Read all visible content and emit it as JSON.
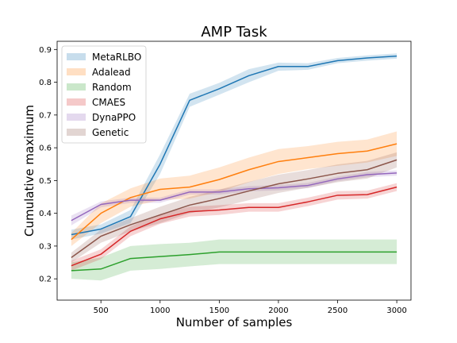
{
  "chart_data": {
    "type": "line",
    "title": "AMP Task",
    "xlabel": "Number of samples",
    "ylabel": "Cumulative maximum",
    "xlim": [
      130,
      3120
    ],
    "ylim": [
      0.135,
      0.925
    ],
    "xticks": [
      500,
      1000,
      1500,
      2000,
      2500,
      3000
    ],
    "yticks": [
      0.2,
      0.3,
      0.4,
      0.5,
      0.6,
      0.7,
      0.8,
      0.9
    ],
    "grid": false,
    "legend_position": "top-left",
    "series": [
      {
        "name": "MetaRLBO",
        "color": "#1f77b4",
        "x": [
          250,
          500,
          750,
          1000,
          1250,
          1500,
          1750,
          2000,
          2250,
          2500,
          2750,
          3000
        ],
        "y": [
          0.335,
          0.352,
          0.39,
          0.55,
          0.745,
          0.78,
          0.82,
          0.848,
          0.848,
          0.866,
          0.874,
          0.88
        ],
        "lower": [
          0.32,
          0.338,
          0.37,
          0.52,
          0.725,
          0.762,
          0.8,
          0.835,
          0.838,
          0.858,
          0.866,
          0.872
        ],
        "upper": [
          0.35,
          0.366,
          0.41,
          0.58,
          0.765,
          0.798,
          0.84,
          0.86,
          0.858,
          0.874,
          0.882,
          0.888
        ]
      },
      {
        "name": "Adalead",
        "color": "#ff7f0e",
        "x": [
          250,
          500,
          750,
          1000,
          1250,
          1500,
          1750,
          2000,
          2250,
          2500,
          2750,
          3000
        ],
        "y": [
          0.32,
          0.4,
          0.448,
          0.473,
          0.48,
          0.503,
          0.533,
          0.558,
          0.57,
          0.582,
          0.59,
          0.612
        ],
        "lower": [
          0.3,
          0.37,
          0.42,
          0.44,
          0.445,
          0.465,
          0.495,
          0.52,
          0.535,
          0.545,
          0.555,
          0.575
        ],
        "upper": [
          0.34,
          0.43,
          0.476,
          0.506,
          0.515,
          0.54,
          0.57,
          0.596,
          0.605,
          0.618,
          0.625,
          0.65
        ]
      },
      {
        "name": "Random",
        "color": "#2ca02c",
        "x": [
          250,
          500,
          750,
          1000,
          1250,
          1500,
          1750,
          2000,
          2250,
          2500,
          2750,
          3000
        ],
        "y": [
          0.225,
          0.23,
          0.262,
          0.268,
          0.274,
          0.282,
          0.282,
          0.282,
          0.282,
          0.282,
          0.282,
          0.282
        ],
        "lower": [
          0.2,
          0.195,
          0.225,
          0.23,
          0.238,
          0.245,
          0.245,
          0.245,
          0.245,
          0.245,
          0.245,
          0.245
        ],
        "upper": [
          0.25,
          0.265,
          0.3,
          0.306,
          0.31,
          0.32,
          0.32,
          0.32,
          0.32,
          0.32,
          0.32,
          0.32
        ]
      },
      {
        "name": "CMAES",
        "color": "#d62728",
        "x": [
          250,
          500,
          750,
          1000,
          1250,
          1500,
          1750,
          2000,
          2250,
          2500,
          2750,
          3000
        ],
        "y": [
          0.24,
          0.275,
          0.345,
          0.383,
          0.405,
          0.41,
          0.418,
          0.418,
          0.435,
          0.455,
          0.457,
          0.48
        ],
        "lower": [
          0.225,
          0.26,
          0.33,
          0.368,
          0.39,
          0.395,
          0.405,
          0.405,
          0.422,
          0.442,
          0.445,
          0.468
        ],
        "upper": [
          0.255,
          0.29,
          0.36,
          0.398,
          0.42,
          0.425,
          0.431,
          0.431,
          0.448,
          0.468,
          0.469,
          0.492
        ]
      },
      {
        "name": "DynaPPO",
        "color": "#9467bd",
        "x": [
          250,
          500,
          750,
          1000,
          1250,
          1500,
          1750,
          2000,
          2250,
          2500,
          2750,
          3000
        ],
        "y": [
          0.378,
          0.427,
          0.44,
          0.44,
          0.465,
          0.465,
          0.475,
          0.478,
          0.485,
          0.505,
          0.518,
          0.523
        ],
        "lower": [
          0.363,
          0.418,
          0.432,
          0.432,
          0.457,
          0.457,
          0.467,
          0.47,
          0.477,
          0.498,
          0.51,
          0.515
        ],
        "upper": [
          0.393,
          0.436,
          0.448,
          0.448,
          0.473,
          0.473,
          0.483,
          0.486,
          0.493,
          0.512,
          0.526,
          0.531
        ]
      },
      {
        "name": "Genetic",
        "color": "#8c564b",
        "x": [
          250,
          500,
          750,
          1000,
          1250,
          1500,
          1750,
          2000,
          2250,
          2500,
          2750,
          3000
        ],
        "y": [
          0.265,
          0.33,
          0.365,
          0.395,
          0.425,
          0.445,
          0.468,
          0.49,
          0.505,
          0.522,
          0.533,
          0.563
        ],
        "lower": [
          0.25,
          0.31,
          0.345,
          0.37,
          0.4,
          0.418,
          0.44,
          0.462,
          0.478,
          0.495,
          0.506,
          0.54
        ],
        "upper": [
          0.28,
          0.35,
          0.385,
          0.42,
          0.45,
          0.472,
          0.496,
          0.518,
          0.532,
          0.549,
          0.56,
          0.586
        ]
      }
    ]
  }
}
